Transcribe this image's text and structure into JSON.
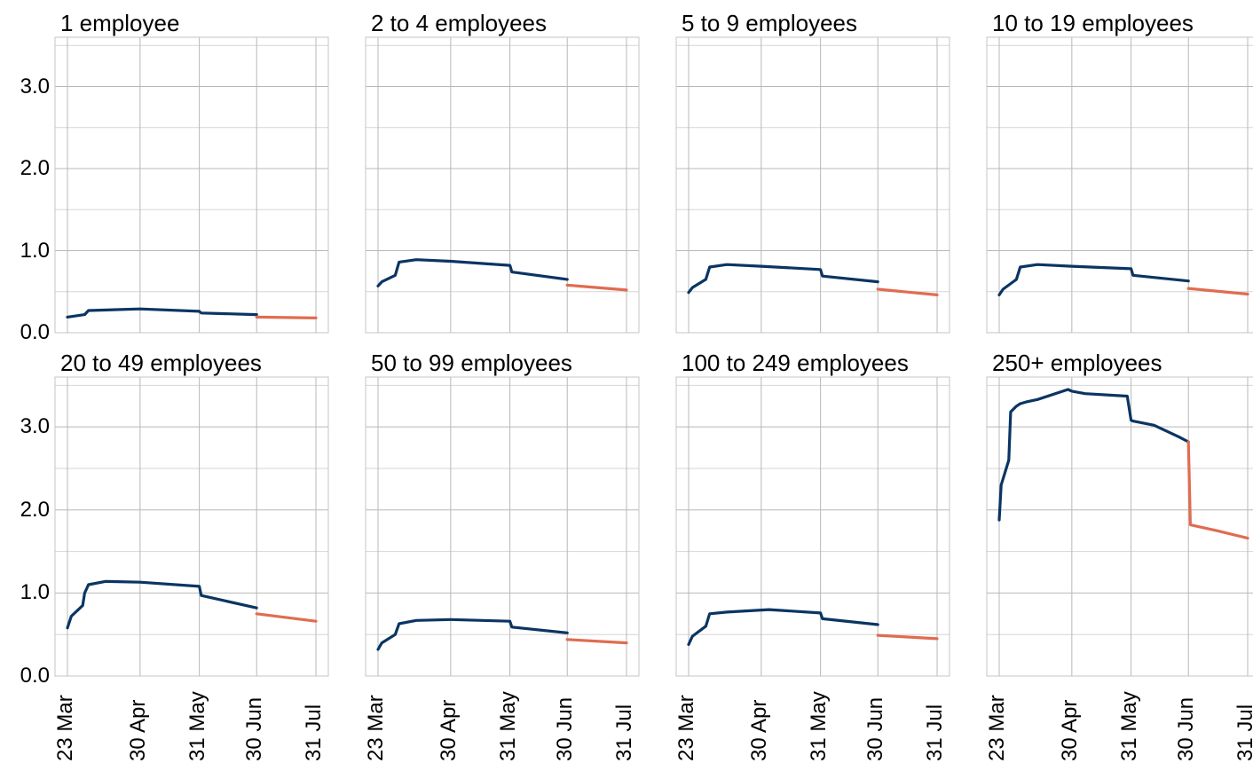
{
  "chart_data": {
    "type": "line",
    "layout": "small-multiples 2x4",
    "shared_y_axis": true,
    "ylim": [
      0,
      3.6
    ],
    "yticks": [
      "0.0",
      "1.0",
      "2.0",
      "3.0"
    ],
    "xticks": [
      "23 Mar",
      "30 Apr",
      "31 May",
      "30 Jun",
      "31 Jul"
    ],
    "grid": true,
    "colors": {
      "actual": "#0a3563",
      "projected": "#e06c51"
    },
    "panels": [
      {
        "title": "1 employee",
        "series": [
          {
            "segment": "actual",
            "x": [
              "2020-03-23",
              "2020-04-01",
              "2020-04-03",
              "2020-04-30",
              "2020-05-31",
              "2020-06-01",
              "2020-06-30"
            ],
            "y": [
              0.19,
              0.22,
              0.27,
              0.29,
              0.26,
              0.24,
              0.22
            ]
          },
          {
            "segment": "projected",
            "x": [
              "2020-06-30",
              "2020-07-31"
            ],
            "y": [
              0.19,
              0.18
            ]
          }
        ]
      },
      {
        "title": "2 to 4 employees",
        "series": [
          {
            "segment": "actual",
            "x": [
              "2020-03-23",
              "2020-03-25",
              "2020-04-01",
              "2020-04-03",
              "2020-04-12",
              "2020-04-30",
              "2020-05-31",
              "2020-06-01",
              "2020-06-30"
            ],
            "y": [
              0.57,
              0.62,
              0.7,
              0.86,
              0.89,
              0.87,
              0.82,
              0.74,
              0.65
            ]
          },
          {
            "segment": "projected",
            "x": [
              "2020-06-30",
              "2020-07-31"
            ],
            "y": [
              0.58,
              0.52
            ]
          }
        ]
      },
      {
        "title": "5 to 9 employees",
        "series": [
          {
            "segment": "actual",
            "x": [
              "2020-03-23",
              "2020-03-25",
              "2020-04-01",
              "2020-04-03",
              "2020-04-12",
              "2020-04-30",
              "2020-05-31",
              "2020-06-01",
              "2020-06-30"
            ],
            "y": [
              0.49,
              0.55,
              0.65,
              0.8,
              0.83,
              0.81,
              0.77,
              0.69,
              0.62
            ]
          },
          {
            "segment": "projected",
            "x": [
              "2020-06-30",
              "2020-07-31"
            ],
            "y": [
              0.53,
              0.46
            ]
          }
        ]
      },
      {
        "title": "10 to 19 employees",
        "series": [
          {
            "segment": "actual",
            "x": [
              "2020-03-23",
              "2020-03-25",
              "2020-04-01",
              "2020-04-03",
              "2020-04-12",
              "2020-04-30",
              "2020-05-31",
              "2020-06-01",
              "2020-06-30"
            ],
            "y": [
              0.46,
              0.53,
              0.65,
              0.8,
              0.83,
              0.81,
              0.78,
              0.7,
              0.63
            ]
          },
          {
            "segment": "projected",
            "x": [
              "2020-06-30",
              "2020-07-31"
            ],
            "y": [
              0.54,
              0.47
            ]
          }
        ]
      },
      {
        "title": "20 to 49 employees",
        "series": [
          {
            "segment": "actual",
            "x": [
              "2020-03-23",
              "2020-03-25",
              "2020-03-31",
              "2020-04-01",
              "2020-04-03",
              "2020-04-12",
              "2020-04-30",
              "2020-05-31",
              "2020-06-01",
              "2020-06-30"
            ],
            "y": [
              0.58,
              0.72,
              0.85,
              1.0,
              1.1,
              1.14,
              1.13,
              1.08,
              0.97,
              0.82
            ]
          },
          {
            "segment": "projected",
            "x": [
              "2020-06-30",
              "2020-07-31"
            ],
            "y": [
              0.75,
              0.66
            ]
          }
        ]
      },
      {
        "title": "50 to 99 employees",
        "series": [
          {
            "segment": "actual",
            "x": [
              "2020-03-23",
              "2020-03-25",
              "2020-04-01",
              "2020-04-03",
              "2020-04-12",
              "2020-04-30",
              "2020-05-31",
              "2020-06-01",
              "2020-06-30"
            ],
            "y": [
              0.32,
              0.4,
              0.5,
              0.63,
              0.67,
              0.68,
              0.66,
              0.59,
              0.52
            ]
          },
          {
            "segment": "projected",
            "x": [
              "2020-06-30",
              "2020-07-31"
            ],
            "y": [
              0.44,
              0.4
            ]
          }
        ]
      },
      {
        "title": "100 to 249 employees",
        "series": [
          {
            "segment": "actual",
            "x": [
              "2020-03-23",
              "2020-03-25",
              "2020-04-01",
              "2020-04-03",
              "2020-04-12",
              "2020-05-04",
              "2020-05-31",
              "2020-06-01",
              "2020-06-30"
            ],
            "y": [
              0.38,
              0.48,
              0.6,
              0.75,
              0.77,
              0.8,
              0.76,
              0.69,
              0.62
            ]
          },
          {
            "segment": "projected",
            "x": [
              "2020-06-30",
              "2020-07-31"
            ],
            "y": [
              0.49,
              0.45
            ]
          }
        ]
      },
      {
        "title": "250+ employees",
        "series": [
          {
            "segment": "actual",
            "x": [
              "2020-03-23",
              "2020-03-24",
              "2020-03-28",
              "2020-03-29",
              "2020-04-01",
              "2020-04-03",
              "2020-04-06",
              "2020-04-12",
              "2020-04-28",
              "2020-04-30",
              "2020-05-07",
              "2020-05-29",
              "2020-05-31",
              "2020-06-01",
              "2020-06-12",
              "2020-06-25",
              "2020-06-30"
            ],
            "y": [
              1.88,
              2.3,
              2.6,
              3.18,
              3.25,
              3.28,
              3.3,
              3.33,
              3.45,
              3.43,
              3.4,
              3.37,
              3.08,
              3.07,
              3.02,
              2.88,
              2.82
            ]
          },
          {
            "segment": "projected",
            "x": [
              "2020-06-30",
              "2020-07-01",
              "2020-07-15",
              "2020-07-31"
            ],
            "y": [
              2.82,
              1.82,
              1.75,
              1.66
            ]
          }
        ]
      }
    ]
  }
}
